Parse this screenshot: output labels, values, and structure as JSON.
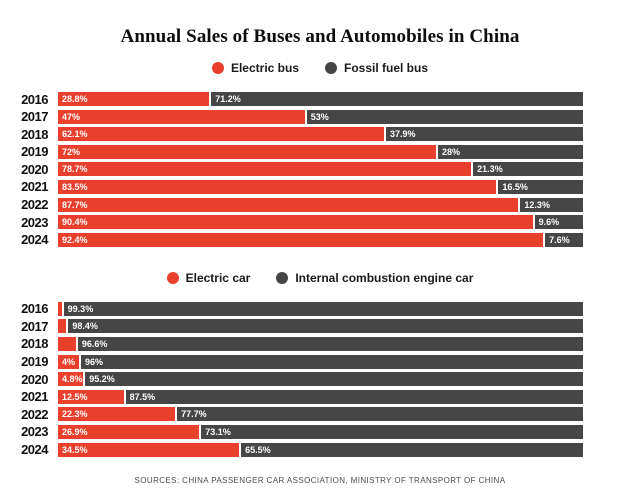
{
  "title": "Annual Sales of Buses and Automobiles in China",
  "footer": "SOURCES: CHINA PASSENGER CAR ASSOCIATION, MINISTRY OF TRANSPORT OF CHINA",
  "colors": {
    "electric": "#e8402d",
    "fossil": "#464646"
  },
  "chart_data": [
    {
      "type": "bar",
      "orientation": "horizontal",
      "stacked": true,
      "unit": "percent",
      "xlim": [
        0,
        100
      ],
      "legend_position": "top",
      "categories": [
        "2016",
        "2017",
        "2018",
        "2019",
        "2020",
        "2021",
        "2022",
        "2023",
        "2024"
      ],
      "series": [
        {
          "name": "Electric bus",
          "color": "#e8402d",
          "values": [
            28.8,
            47,
            62.1,
            72,
            78.7,
            83.5,
            87.7,
            90.4,
            92.4
          ],
          "labels": [
            "28.8%",
            "47%",
            "62.1%",
            "72%",
            "78.7%",
            "83.5%",
            "87.7%",
            "90.4%",
            "92.4%"
          ]
        },
        {
          "name": "Fossil fuel bus",
          "color": "#464646",
          "values": [
            71.2,
            53,
            37.9,
            28,
            21.3,
            16.5,
            12.3,
            9.6,
            7.6
          ],
          "labels": [
            "71.2%",
            "53%",
            "37.9%",
            "28%",
            "21.3%",
            "16.5%",
            "12.3%",
            "9.6%",
            "7.6%"
          ]
        }
      ]
    },
    {
      "type": "bar",
      "orientation": "horizontal",
      "stacked": true,
      "unit": "percent",
      "xlim": [
        0,
        100
      ],
      "legend_position": "top",
      "categories": [
        "2016",
        "2017",
        "2018",
        "2019",
        "2020",
        "2021",
        "2022",
        "2023",
        "2024"
      ],
      "series": [
        {
          "name": "Electric car",
          "color": "#e8402d",
          "values": [
            0.7,
            1.6,
            3.4,
            4,
            4.8,
            12.5,
            22.3,
            26.9,
            34.5
          ],
          "labels": [
            "",
            "",
            "",
            "4%",
            "4.8%",
            "12.5%",
            "22.3%",
            "26.9%",
            "34.5%"
          ]
        },
        {
          "name": "Internal combustion engine car",
          "color": "#464646",
          "values": [
            99.3,
            98.4,
            96.6,
            96,
            95.2,
            87.5,
            77.7,
            73.1,
            65.5
          ],
          "labels": [
            "99.3%",
            "98.4%",
            "96.6%",
            "96%",
            "95.2%",
            "87.5%",
            "77.7%",
            "73.1%",
            "65.5%"
          ]
        }
      ]
    }
  ]
}
